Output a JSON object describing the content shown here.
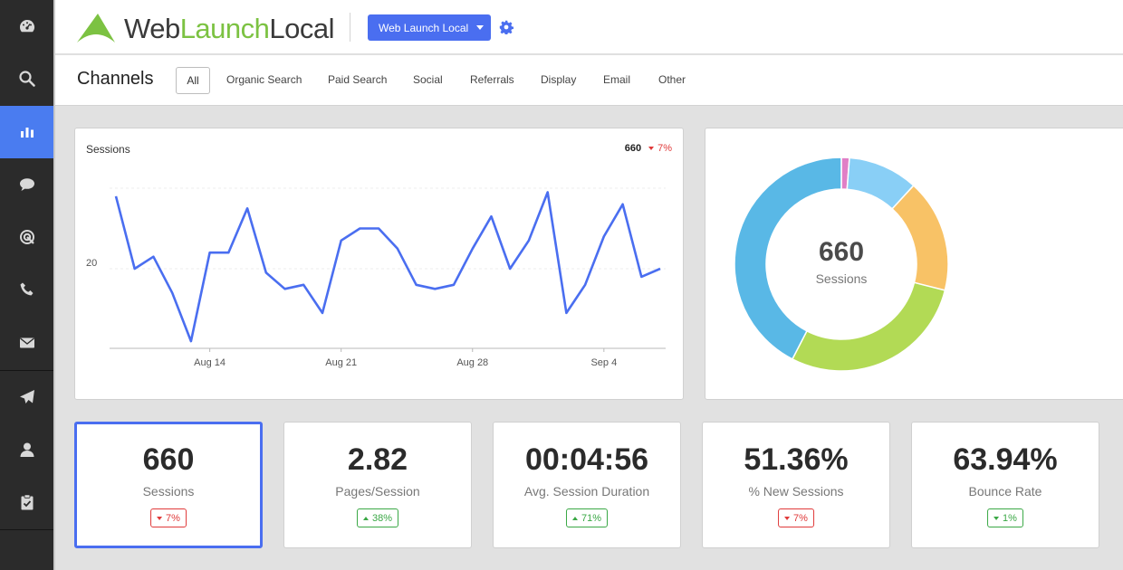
{
  "header": {
    "logo_part1": "Web",
    "logo_part2": "Launch",
    "logo_part3": "Local",
    "site_selector": "Web Launch Local"
  },
  "sidebar": {
    "items": [
      {
        "icon": "dashboard-icon"
      },
      {
        "icon": "search-icon"
      },
      {
        "icon": "bar-chart-icon",
        "active": true
      },
      {
        "icon": "chat-icon"
      },
      {
        "icon": "target-icon"
      },
      {
        "icon": "phone-icon"
      },
      {
        "icon": "envelope-icon"
      },
      {
        "icon": "paper-plane-icon"
      },
      {
        "icon": "user-icon"
      },
      {
        "icon": "clipboard-icon"
      }
    ]
  },
  "channels": {
    "title": "Channels",
    "tabs": [
      "All",
      "Organic Search",
      "Paid Search",
      "Social",
      "Referrals",
      "Display",
      "Email",
      "Other"
    ],
    "active_tab": "All"
  },
  "line_chart": {
    "label": "Sessions",
    "total": "660",
    "change": "7%"
  },
  "chart_data": [
    {
      "type": "line",
      "ylabel": "",
      "y_tick_labels": [
        "20"
      ],
      "x_tick_labels": [
        "Aug 14",
        "Aug 21",
        "Aug 28",
        "Sep 4"
      ],
      "color": "#4a6ef0",
      "values": [
        29,
        20,
        21.5,
        17,
        11,
        22,
        22,
        27.5,
        19.5,
        17.5,
        18,
        14.5,
        23.5,
        25,
        25,
        22.5,
        18,
        17.5,
        18,
        22.5,
        26.5,
        20,
        23.5,
        29.5,
        14.5,
        18,
        24,
        28,
        19,
        20
      ]
    },
    {
      "type": "pie",
      "title": "660",
      "subtitle": "Sessions",
      "colors": [
        "#e07fc6",
        "#89cff6",
        "#f8c266",
        "#b2da55",
        "#59b8e6"
      ],
      "values": [
        8,
        70,
        113,
        189,
        280
      ]
    }
  ],
  "donut": {
    "value": "660",
    "label": "Sessions"
  },
  "metrics": [
    {
      "value": "660",
      "label": "Sessions",
      "change": "7%",
      "direction": "down",
      "color": "red",
      "active": true
    },
    {
      "value": "2.82",
      "label": "Pages/Session",
      "change": "38%",
      "direction": "up",
      "color": "green"
    },
    {
      "value": "00:04:56",
      "label": "Avg. Session Duration",
      "change": "71%",
      "direction": "up",
      "color": "green"
    },
    {
      "value": "51.36%",
      "label": "% New Sessions",
      "change": "7%",
      "direction": "down",
      "color": "red"
    },
    {
      "value": "63.94%",
      "label": "Bounce Rate",
      "change": "1%",
      "direction": "down",
      "color": "green"
    }
  ]
}
